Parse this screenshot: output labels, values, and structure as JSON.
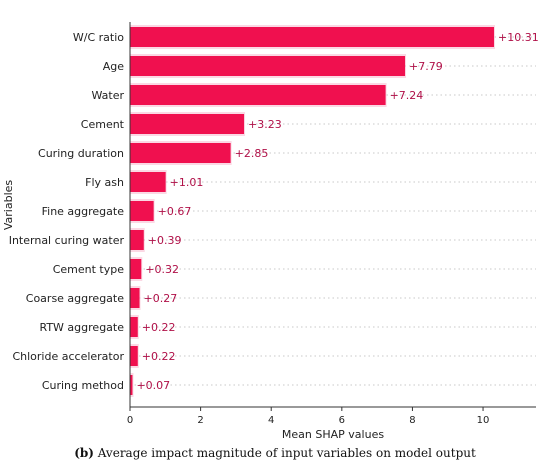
{
  "caption": {
    "label": "(b)",
    "text": " Average impact magnitude of input variables on model output"
  },
  "colors": {
    "bar": "#f0104f",
    "bar_shadow": "#f7a8c4",
    "value_text": "#b01048",
    "axis": "#333333"
  },
  "chart_data": {
    "type": "bar",
    "orientation": "horizontal",
    "categories": [
      "W/C ratio",
      "Age",
      "Water",
      "Cement",
      "Curing duration",
      "Fly ash",
      "Fine aggregate",
      "Internal curing water",
      "Cement type",
      "Coarse aggregate",
      "RTW aggregate",
      "Chloride accelerator",
      "Curing method"
    ],
    "values": [
      10.31,
      7.79,
      7.24,
      3.23,
      2.85,
      1.01,
      0.67,
      0.39,
      0.32,
      0.27,
      0.22,
      0.22,
      0.07
    ],
    "value_labels": [
      "+10.31",
      "+7.79",
      "+7.24",
      "+3.23",
      "+2.85",
      "+1.01",
      "+0.67",
      "+0.39",
      "+0.32",
      "+0.27",
      "+0.22",
      "+0.22",
      "+0.07"
    ],
    "xlabel": "Mean SHAP values",
    "ylabel": "Variables",
    "xlim": [
      0,
      11.5
    ],
    "xticks": [
      0,
      2,
      4,
      6,
      8,
      10
    ],
    "xtick_labels": [
      "0",
      "2",
      "4",
      "6",
      "8",
      "10"
    ],
    "grid": "horizontal dotted"
  }
}
